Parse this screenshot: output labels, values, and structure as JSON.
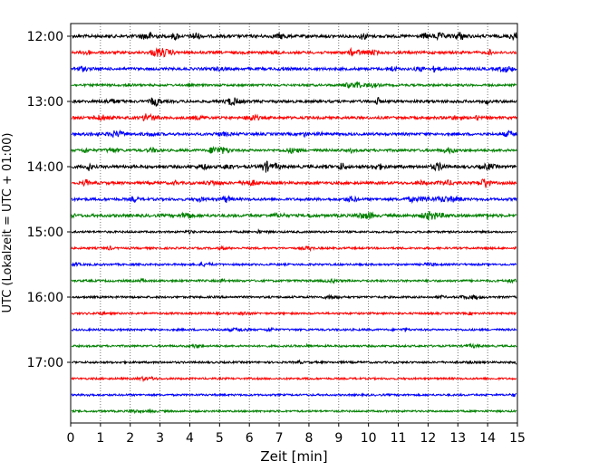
{
  "chart_data": {
    "type": "line",
    "xlabel": "Zeit  [min]",
    "ylabel": "UTC (Lokalzeit = UTC + 01:00)",
    "xlim": [
      0,
      15
    ],
    "x_ticks": [
      "0",
      "1",
      "2",
      "3",
      "4",
      "5",
      "6",
      "7",
      "8",
      "9",
      "10",
      "11",
      "12",
      "13",
      "14",
      "15"
    ],
    "y_tick_labels": [
      "12:00",
      "13:00",
      "14:00",
      "15:00",
      "16:00",
      "17:00"
    ],
    "y_tick_minutes_since_12": [
      0,
      60,
      120,
      180,
      240,
      300
    ],
    "trace_interval_min": 15,
    "trace_colors_cycle": [
      "#000000",
      "#ff0000",
      "#0000ff",
      "#008000"
    ],
    "vertical_grid": "dotted",
    "traces": [
      {
        "start": "12:00",
        "color": "#000000",
        "activity": 0.8
      },
      {
        "start": "12:15",
        "color": "#ff0000",
        "activity": 0.6
      },
      {
        "start": "12:30",
        "color": "#0000ff",
        "activity": 0.6
      },
      {
        "start": "12:45",
        "color": "#008000",
        "activity": 0.35
      },
      {
        "start": "13:00",
        "color": "#000000",
        "activity": 0.6
      },
      {
        "start": "13:15",
        "color": "#ff0000",
        "activity": 0.6
      },
      {
        "start": "13:30",
        "color": "#0000ff",
        "activity": 0.6
      },
      {
        "start": "13:45",
        "color": "#008000",
        "activity": 0.55
      },
      {
        "start": "14:00",
        "color": "#000000",
        "activity": 0.75
      },
      {
        "start": "14:15",
        "color": "#ff0000",
        "activity": 0.65
      },
      {
        "start": "14:30",
        "color": "#0000ff",
        "activity": 0.6
      },
      {
        "start": "14:45",
        "color": "#008000",
        "activity": 0.75
      },
      {
        "start": "15:00",
        "color": "#000000",
        "activity": 0.2
      },
      {
        "start": "15:15",
        "color": "#ff0000",
        "activity": 0.2
      },
      {
        "start": "15:30",
        "color": "#0000ff",
        "activity": 0.2
      },
      {
        "start": "15:45",
        "color": "#008000",
        "activity": 0.3
      },
      {
        "start": "16:00",
        "color": "#000000",
        "activity": 0.25
      },
      {
        "start": "16:15",
        "color": "#ff0000",
        "activity": 0.2
      },
      {
        "start": "16:30",
        "color": "#0000ff",
        "activity": 0.2
      },
      {
        "start": "16:45",
        "color": "#008000",
        "activity": 0.2
      },
      {
        "start": "17:00",
        "color": "#000000",
        "activity": 0.2
      },
      {
        "start": "17:15",
        "color": "#ff0000",
        "activity": 0.15
      },
      {
        "start": "17:30",
        "color": "#0000ff",
        "activity": 0.15
      },
      {
        "start": "17:45",
        "color": "#008000",
        "activity": 0.15
      }
    ]
  }
}
